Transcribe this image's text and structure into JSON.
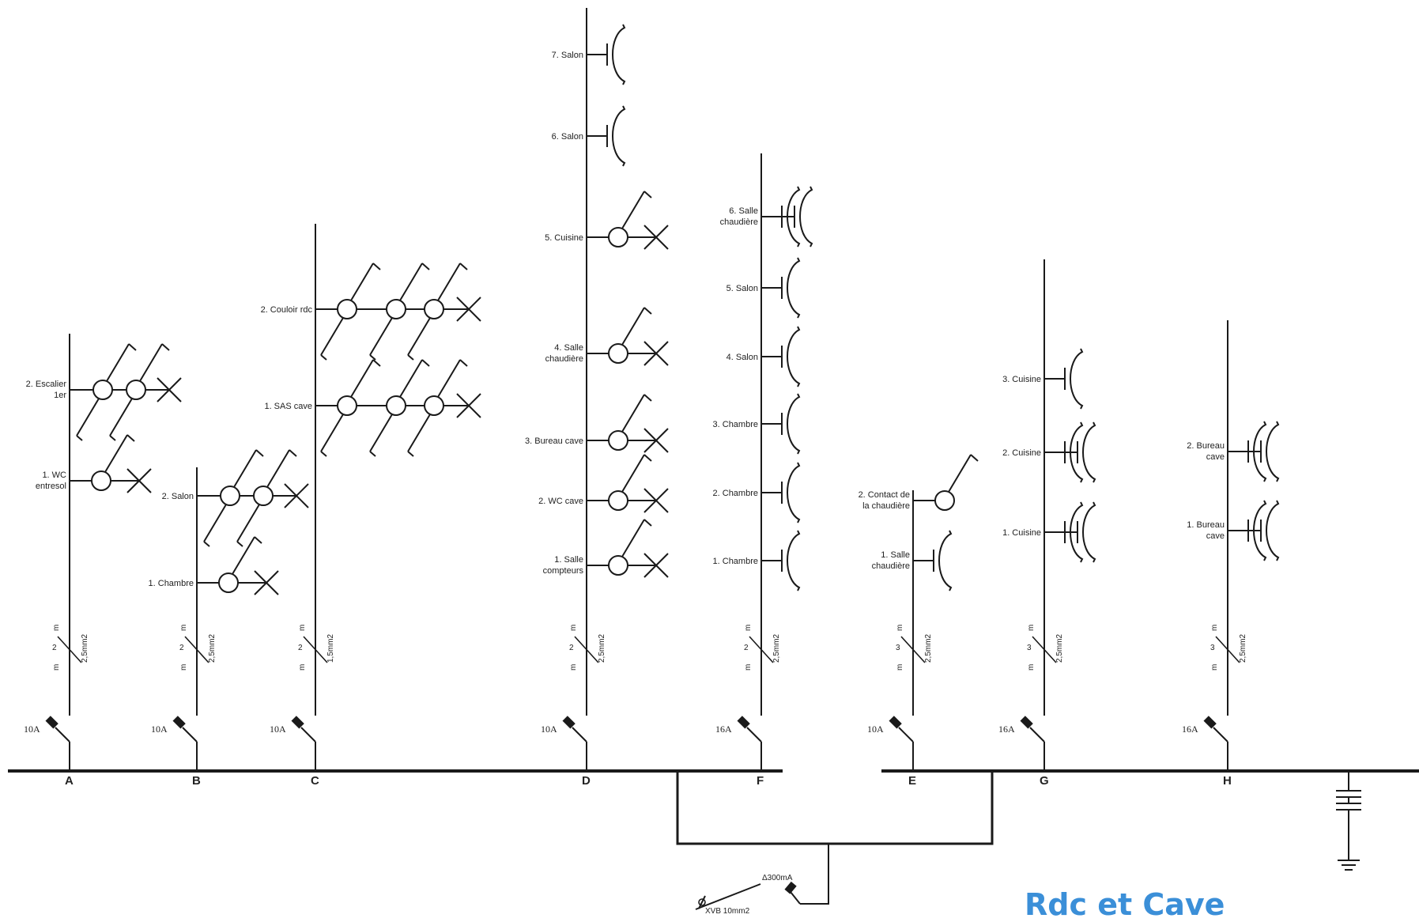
{
  "title": "Rdc et Cave",
  "title_color": "#3b8fd8",
  "line_color": "#1a1a1a",
  "circuits": [
    {
      "id": "A",
      "breaker": "10A",
      "conductors": "2",
      "section": "2,5mm2",
      "items": [
        {
          "label": "2. Escalier 1er",
          "device": "light-2switch"
        },
        {
          "label": "1. WC entresol",
          "device": "light-1switch"
        }
      ]
    },
    {
      "id": "B",
      "breaker": "10A",
      "conductors": "2",
      "section": "2,5mm2",
      "items": [
        {
          "label": "2. Salon",
          "device": "light-2switch"
        },
        {
          "label": "1. Chambre",
          "device": "light-1switch"
        }
      ]
    },
    {
      "id": "C",
      "breaker": "10A",
      "conductors": "2",
      "section": "1,5mm2",
      "items": [
        {
          "label": "2. Couloir rdc",
          "device": "light-3switch"
        },
        {
          "label": "1. SAS cave",
          "device": "light-3switch"
        }
      ]
    },
    {
      "id": "D",
      "breaker": "10A",
      "conductors": "2",
      "section": "2,5mm2",
      "items": [
        {
          "label": "7. Salon",
          "device": "socket"
        },
        {
          "label": "6. Salon",
          "device": "socket"
        },
        {
          "label": "5. Cuisine",
          "device": "light-1switch"
        },
        {
          "label": "4. Salle chaudière",
          "device": "light-1switch"
        },
        {
          "label": "3. Bureau cave",
          "device": "light-1switch"
        },
        {
          "label": "2. WC cave",
          "device": "light-1switch"
        },
        {
          "label": "1. Salle compteurs",
          "device": "light-1switch"
        }
      ]
    },
    {
      "id": "F",
      "breaker": "16A",
      "conductors": "2",
      "section": "2,5mm2",
      "items": [
        {
          "label": "6. Salle chaudière",
          "device": "socket-double"
        },
        {
          "label": "5. Salon",
          "device": "socket"
        },
        {
          "label": "4. Salon",
          "device": "socket"
        },
        {
          "label": "3. Chambre",
          "device": "socket"
        },
        {
          "label": "2. Chambre",
          "device": "socket"
        },
        {
          "label": "1. Chambre",
          "device": "socket"
        }
      ]
    },
    {
      "id": "E",
      "breaker": "10A",
      "conductors": "3",
      "section": "2,5mm2",
      "items": [
        {
          "label": "2. Contact de la chaudière",
          "device": "switch"
        },
        {
          "label": "1. Salle chaudière",
          "device": "socket"
        }
      ]
    },
    {
      "id": "G",
      "breaker": "16A",
      "conductors": "3",
      "section": "2,5mm2",
      "items": [
        {
          "label": "3. Cuisine",
          "device": "socket"
        },
        {
          "label": "2. Cuisine",
          "device": "socket-double"
        },
        {
          "label": "1. Cuisine",
          "device": "socket-double"
        }
      ]
    },
    {
      "id": "H",
      "breaker": "16A",
      "conductors": "3",
      "section": "2,5mm2",
      "items": [
        {
          "label": "2. Bureau cave",
          "device": "socket-double"
        },
        {
          "label": "1. Bureau cave",
          "device": "socket-double"
        }
      ]
    }
  ],
  "conductor_mark": "m",
  "differential": {
    "rating": "Δ300mA",
    "cable": "XVB 10mm2"
  }
}
